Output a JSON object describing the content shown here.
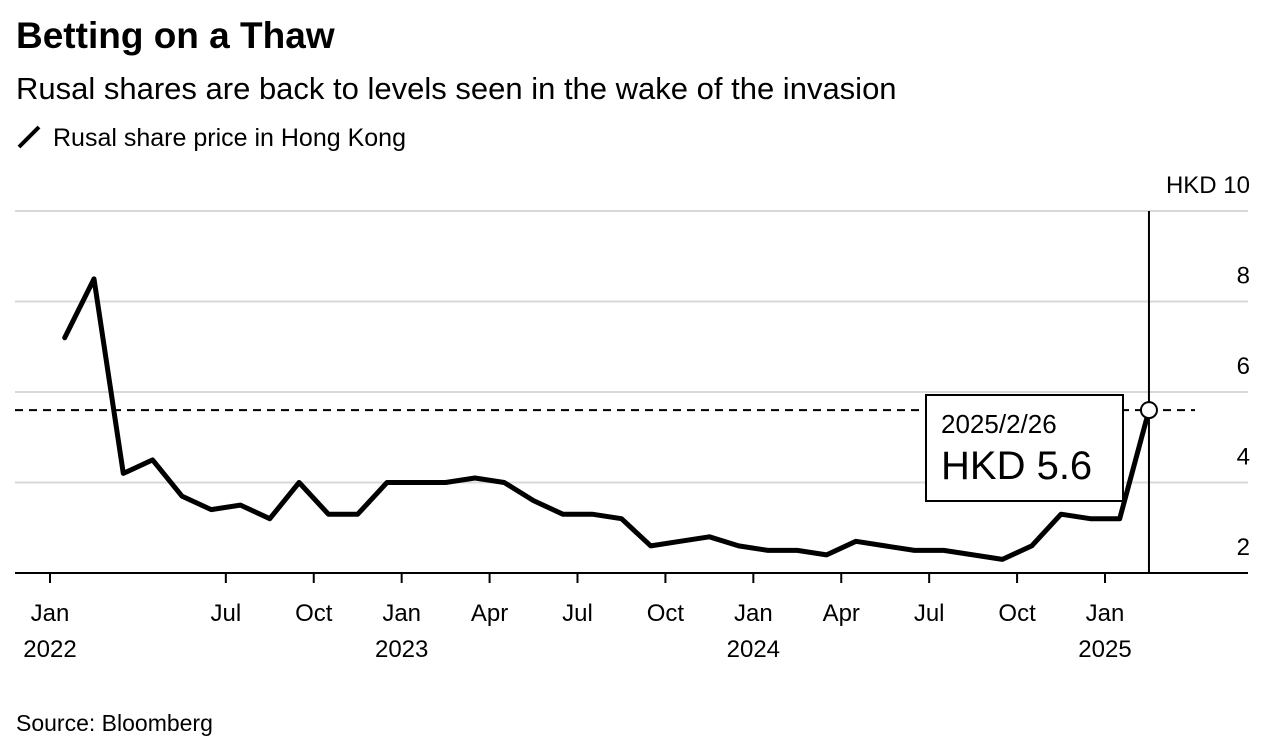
{
  "chart_data": {
    "type": "line",
    "title": "Betting on a Thaw",
    "subtitle": "Rusal shares are back to levels seen in the wake of the invasion",
    "source": "Source: Bloomberg",
    "x": [
      "2022-01",
      "2022-02",
      "2022-03",
      "2022-04",
      "2022-05",
      "2022-06",
      "2022-07",
      "2022-08",
      "2022-09",
      "2022-10",
      "2022-11",
      "2022-12",
      "2023-01",
      "2023-02",
      "2023-03",
      "2023-04",
      "2023-05",
      "2023-06",
      "2023-07",
      "2023-08",
      "2023-09",
      "2023-10",
      "2023-11",
      "2023-12",
      "2024-01",
      "2024-02",
      "2024-03",
      "2024-04",
      "2024-05",
      "2024-06",
      "2024-07",
      "2024-08",
      "2024-09",
      "2024-10",
      "2024-11",
      "2024-12",
      "2025-01",
      "2025-02"
    ],
    "series": [
      {
        "name": "Rusal share price in Hong Kong",
        "color": "#000000",
        "values": [
          7.2,
          8.5,
          4.2,
          4.5,
          3.7,
          3.4,
          3.5,
          3.2,
          4.0,
          3.3,
          3.3,
          4.0,
          4.0,
          4.0,
          4.1,
          4.0,
          3.6,
          3.3,
          3.3,
          3.2,
          2.6,
          2.7,
          2.8,
          2.6,
          2.5,
          2.5,
          2.4,
          2.7,
          2.6,
          2.5,
          2.5,
          2.4,
          2.3,
          2.6,
          3.3,
          3.2,
          3.2,
          5.6
        ]
      }
    ],
    "ylim": [
      2,
      10
    ],
    "yticks": [
      2,
      4,
      6,
      8,
      {
        "value": 10,
        "label": "HKD 10"
      }
    ],
    "xticks": [
      {
        "value": "2022-01",
        "label": "Jan",
        "year": "2022"
      },
      {
        "value": "2022-07",
        "label": "Jul"
      },
      {
        "value": "2022-10",
        "label": "Oct"
      },
      {
        "value": "2023-01",
        "label": "Jan",
        "year": "2023"
      },
      {
        "value": "2023-04",
        "label": "Apr"
      },
      {
        "value": "2023-07",
        "label": "Jul"
      },
      {
        "value": "2023-10",
        "label": "Oct"
      },
      {
        "value": "2024-01",
        "label": "Jan",
        "year": "2024"
      },
      {
        "value": "2024-04",
        "label": "Apr"
      },
      {
        "value": "2024-07",
        "label": "Jul"
      },
      {
        "value": "2024-10",
        "label": "Oct"
      },
      {
        "value": "2025-01",
        "label": "Jan",
        "year": "2025"
      }
    ],
    "annotation": {
      "date": "2025/2/26",
      "label": "HKD 5.6",
      "value": 5.6
    },
    "grid": true
  }
}
